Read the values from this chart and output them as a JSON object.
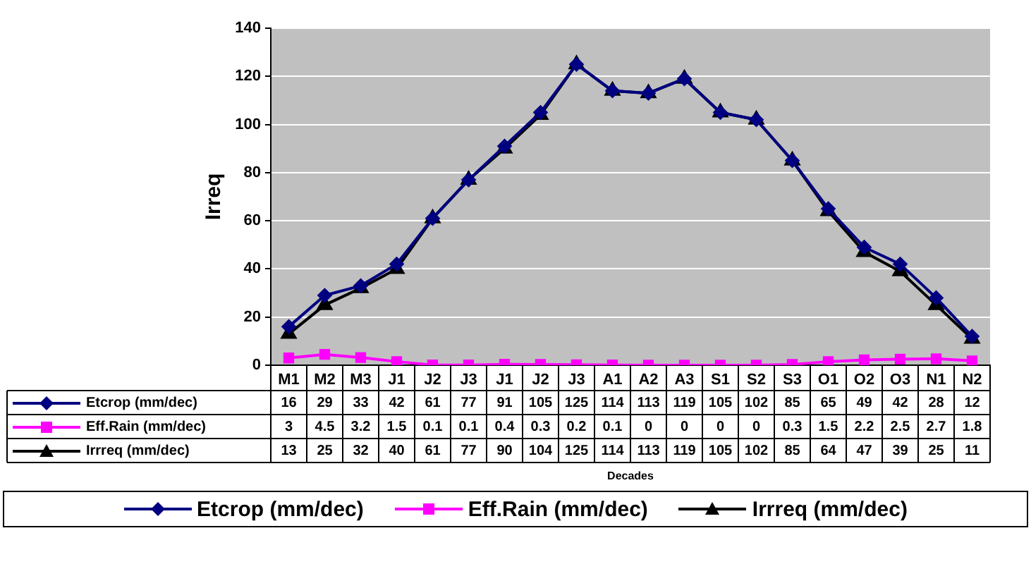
{
  "chart_data": {
    "type": "line",
    "ylabel": "Irreq",
    "annotations": [
      "Decades"
    ],
    "categories": [
      "M1",
      "M2",
      "M3",
      "J1",
      "J2",
      "J3",
      "J1",
      "J2",
      "J3",
      "A1",
      "A2",
      "A3",
      "S1",
      "S2",
      "S3",
      "O1",
      "O2",
      "O3",
      "N1",
      "N2"
    ],
    "series": [
      {
        "name": "Etcrop (mm/dec)",
        "color": "#000080",
        "marker": "diamond",
        "values": [
          16,
          29,
          33,
          42,
          61,
          77,
          91,
          105,
          125,
          114,
          113,
          119,
          105,
          102,
          85,
          65,
          49,
          42,
          28,
          12
        ]
      },
      {
        "name": "Eff.Rain (mm/dec)",
        "color": "#ff00ff",
        "marker": "square",
        "values": [
          3,
          4.5,
          3.2,
          1.5,
          0.1,
          0.1,
          0.4,
          0.3,
          0.2,
          0.1,
          0,
          0,
          0,
          0,
          0.3,
          1.5,
          2.2,
          2.5,
          2.7,
          1.8
        ]
      },
      {
        "name": "Irrreq (mm/dec)",
        "color": "#000000",
        "marker": "triangle",
        "values": [
          13,
          25,
          32,
          40,
          61,
          77,
          90,
          104,
          125,
          114,
          113,
          119,
          105,
          102,
          85,
          64,
          47,
          39,
          25,
          11
        ]
      }
    ],
    "ylim": [
      0,
      140
    ],
    "yticks": [
      0,
      20,
      40,
      60,
      80,
      100,
      120,
      140
    ],
    "grid": "y",
    "legend": "bottom",
    "data_labels": true
  }
}
